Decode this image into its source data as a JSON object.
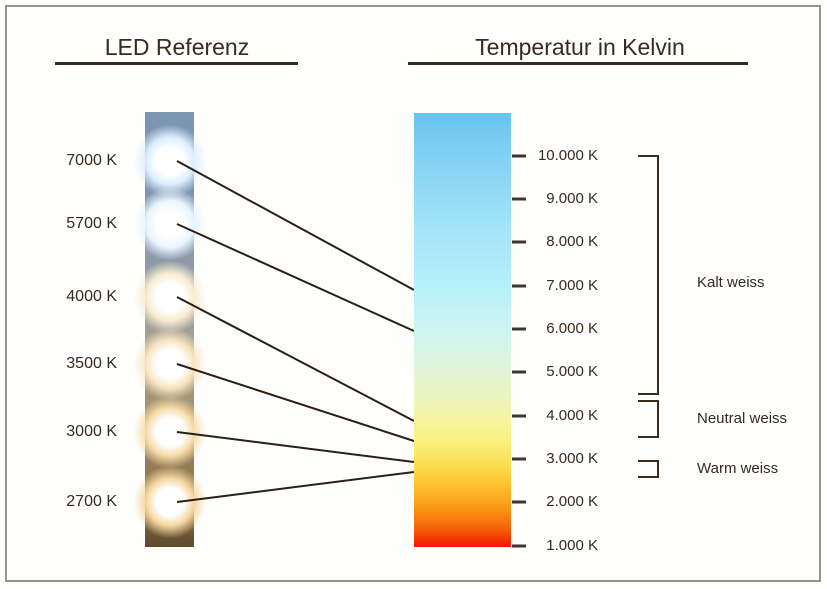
{
  "titles": {
    "led_reference": "LED Referenz",
    "kelvin_scale": "Temperatur in Kelvin"
  },
  "led_reference": {
    "items": [
      {
        "label": "7000 K",
        "kelvin": 7000
      },
      {
        "label": "5700 K",
        "kelvin": 5700
      },
      {
        "label": "4000 K",
        "kelvin": 4000
      },
      {
        "label": "3500 K",
        "kelvin": 3500
      },
      {
        "label": "3000 K",
        "kelvin": 3000
      },
      {
        "label": "2700 K",
        "kelvin": 2700
      }
    ]
  },
  "kelvin_scale": {
    "ticks": [
      {
        "kelvin": 10000,
        "label": "10.000 K"
      },
      {
        "kelvin": 9000,
        "label": "9.000 K"
      },
      {
        "kelvin": 8000,
        "label": "8.000 K"
      },
      {
        "kelvin": 7000,
        "label": "7.000 K"
      },
      {
        "kelvin": 6000,
        "label": "6.000 K"
      },
      {
        "kelvin": 5000,
        "label": "5.000 K"
      },
      {
        "kelvin": 4000,
        "label": "4.000 K"
      },
      {
        "kelvin": 3000,
        "label": "3.000 K"
      },
      {
        "kelvin": 2000,
        "label": "2.000 K"
      },
      {
        "kelvin": 1000,
        "label": "1.000 K"
      }
    ],
    "gradient_top_color": "#69c4ef",
    "gradient_bottom_color": "#f11605"
  },
  "ranges": [
    {
      "label": "Kalt weiss"
    },
    {
      "label": "Neutral weiss"
    },
    {
      "label": "Warm weiss"
    }
  ],
  "colors": {
    "line": "#2b1f15",
    "text": "#3a2a1c",
    "frame": "#9c948a"
  },
  "led_glow_halos": [
    "#dceeff",
    "#e8f4ff",
    "#f8ecd2",
    "#f9e6c2",
    "#f7dcaa",
    "#f5d69e"
  ]
}
